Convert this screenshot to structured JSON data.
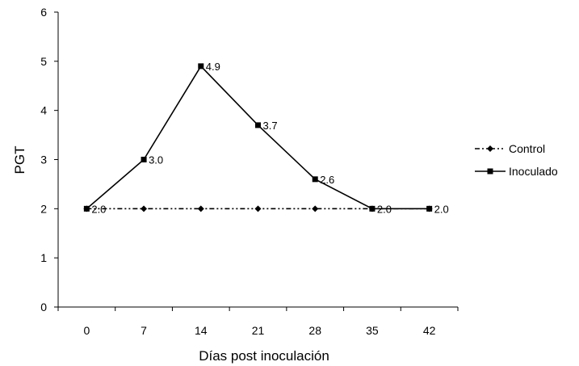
{
  "chart_data": {
    "type": "line",
    "xlabel": "Días post inoculación",
    "ylabel": "PGT",
    "x": [
      0,
      7,
      14,
      21,
      28,
      35,
      42
    ],
    "x_tick_labels": [
      "0",
      "7",
      "14",
      "21",
      "28",
      "35",
      "42"
    ],
    "ylim": [
      0,
      6
    ],
    "y_ticks": [
      0,
      1,
      2,
      3,
      4,
      5,
      6
    ],
    "grid": false,
    "legend_position": "right",
    "series": [
      {
        "name": "Control",
        "values": [
          2.0,
          2.0,
          2.0,
          2.0,
          2.0,
          2.0,
          2.0
        ],
        "line_style": "dash-dot-dot",
        "marker": "diamond",
        "data_labels": [
          "2.0",
          "",
          "",
          "",
          "",
          "2.0",
          ""
        ],
        "color": "#000000"
      },
      {
        "name": "Inoculado",
        "values": [
          2.0,
          3.0,
          4.9,
          3.7,
          2.6,
          2.0,
          2.0
        ],
        "line_style": "solid",
        "marker": "square",
        "data_labels": [
          "",
          "3.0",
          "4.9",
          "3.7",
          "2.6",
          "",
          "2.0"
        ],
        "color": "#000000"
      }
    ]
  }
}
